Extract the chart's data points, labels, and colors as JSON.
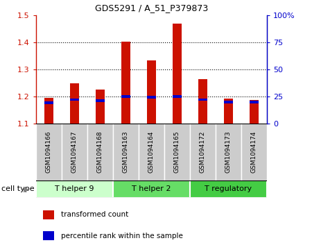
{
  "title": "GDS5291 / A_51_P379873",
  "samples": [
    "GSM1094166",
    "GSM1094167",
    "GSM1094168",
    "GSM1094163",
    "GSM1094164",
    "GSM1094165",
    "GSM1094172",
    "GSM1094173",
    "GSM1094174"
  ],
  "transformed_counts": [
    1.195,
    1.248,
    1.226,
    1.403,
    1.332,
    1.468,
    1.264,
    1.192,
    1.187
  ],
  "percentile_ranks": [
    19,
    22,
    21,
    25,
    24,
    25,
    22,
    20,
    20
  ],
  "ylim_left": [
    1.1,
    1.5
  ],
  "ylim_right": [
    0,
    100
  ],
  "yticks_left": [
    1.1,
    1.2,
    1.3,
    1.4,
    1.5
  ],
  "yticks_right": [
    0,
    25,
    50,
    75,
    100
  ],
  "ytick_labels_right": [
    "0",
    "25",
    "50",
    "75",
    "100%"
  ],
  "bar_color": "#cc1100",
  "percentile_color": "#0000cc",
  "cell_types": [
    {
      "label": "T helper 9",
      "start": 0,
      "end": 3,
      "color": "#ccffcc"
    },
    {
      "label": "T helper 2",
      "start": 3,
      "end": 6,
      "color": "#66dd66"
    },
    {
      "label": "T regulatory",
      "start": 6,
      "end": 9,
      "color": "#44cc44"
    }
  ],
  "cell_type_label": "cell type",
  "legend_items": [
    {
      "label": "transformed count",
      "color": "#cc1100"
    },
    {
      "label": "percentile rank within the sample",
      "color": "#0000cc"
    }
  ],
  "background_color": "#ffffff",
  "label_box_color": "#cccccc",
  "bar_width": 0.35,
  "base_value": 1.1,
  "grid_lines": [
    1.2,
    1.3,
    1.4
  ]
}
